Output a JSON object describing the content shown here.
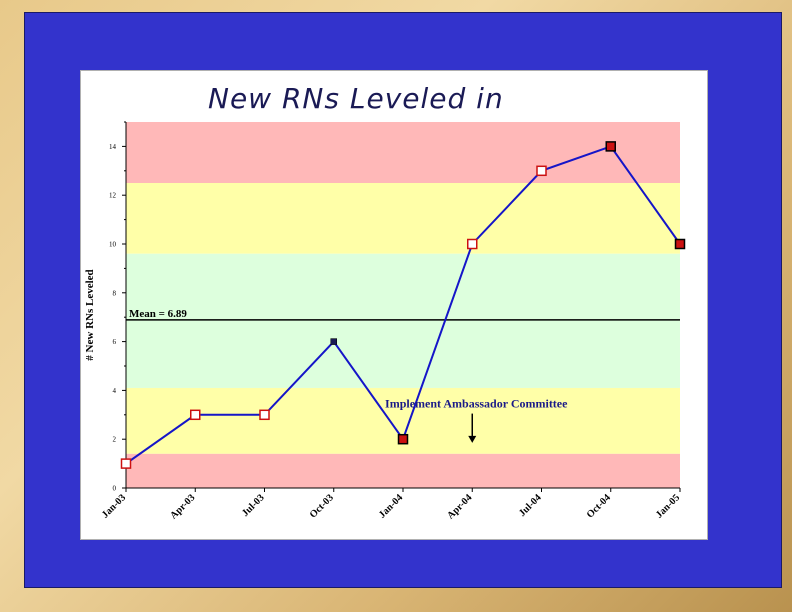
{
  "slide": {
    "title": "New RNs Leveled in",
    "colors": {
      "frame": "#3333cc",
      "panel": "#ffffff"
    }
  },
  "chart_data": {
    "type": "line",
    "title": "",
    "xlabel": "",
    "ylabel": "# New RNs Leveled",
    "ylim": [
      0,
      15
    ],
    "categories": [
      "Jan-03",
      "Apr-03",
      "Jul-03",
      "Oct-03",
      "Jan-04",
      "Apr-04",
      "Jul-04",
      "Oct-04",
      "Jan-05"
    ],
    "y_ticks": [
      0,
      2,
      4,
      6,
      8,
      10,
      12,
      14
    ],
    "series": [
      {
        "values": [
          1,
          3,
          3,
          6,
          2,
          10,
          13,
          14,
          10
        ],
        "color": "#1515c8"
      }
    ],
    "marker_styles": [
      "open",
      "open",
      "open",
      "dot",
      "filled",
      "open",
      "open",
      "filled",
      "filled"
    ],
    "mean": {
      "value": 6.89,
      "label": "Mean = 6.89"
    },
    "bands": [
      {
        "from": 12.5,
        "to": 15,
        "color": "#ffb8b8"
      },
      {
        "from": 9.6,
        "to": 12.5,
        "color": "#ffffa8"
      },
      {
        "from": 4.1,
        "to": 9.6,
        "color": "#ddffdd"
      },
      {
        "from": 1.4,
        "to": 4.1,
        "color": "#ffffa8"
      },
      {
        "from": 0,
        "to": 1.4,
        "color": "#ffb8b8"
      }
    ],
    "annotations": [
      {
        "text": "Implement Ambassador Committee",
        "x": 5,
        "y": 1.85,
        "arrow_from_y": 3.05
      }
    ],
    "grid": false
  }
}
